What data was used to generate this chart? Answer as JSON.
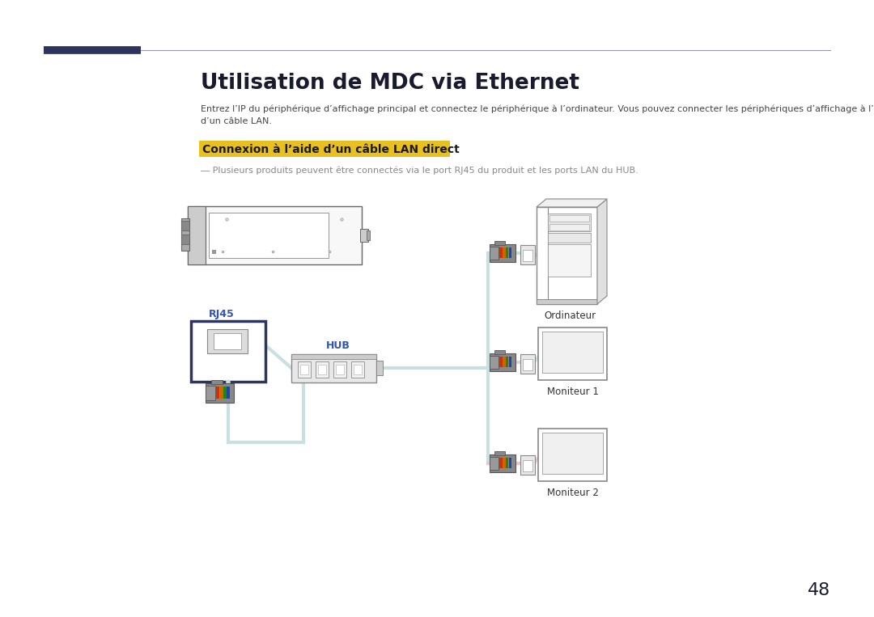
{
  "title": "Utilisation de MDC via Ethernet",
  "body_text": "Entrez l’IP du périphérique d’affichage principal et connectez le périphérique à l’ordinateur. Vous pouvez connecter les périphériques d’affichage à l’aide\nd’un câble LAN.",
  "subtitle": "Connexion à l’aide d’un câble LAN direct",
  "note": "― Plusieurs produits peuvent être connectés via le port RJ45 du produit et les ports LAN du HUB.",
  "page_number": "48",
  "bg_color": "#ffffff",
  "title_color": "#1a1a2e",
  "subtitle_bg": "#e8c020",
  "subtitle_color": "#1a1a1a",
  "note_color": "#888888",
  "body_color": "#444444",
  "header_bar_color": "#2d3460",
  "line_color": "#9999bb",
  "diagram_stroke": "#555555",
  "diagram_light": "#aaaaaa",
  "cable_color": "#c8e0e0",
  "rj45_body": "#888888",
  "rj45_insert": "#cccccc",
  "hub_body": "#dddddd",
  "label_RJ45": "RJ45",
  "label_HUB": "HUB",
  "label_Ordinateur": "Ordinateur",
  "label_Moniteur1": "Moniteur 1",
  "label_Moniteur2": "Moniteur 2",
  "pin_colors": [
    "#cc3300",
    "#cc6600",
    "#228800",
    "#2244aa"
  ]
}
